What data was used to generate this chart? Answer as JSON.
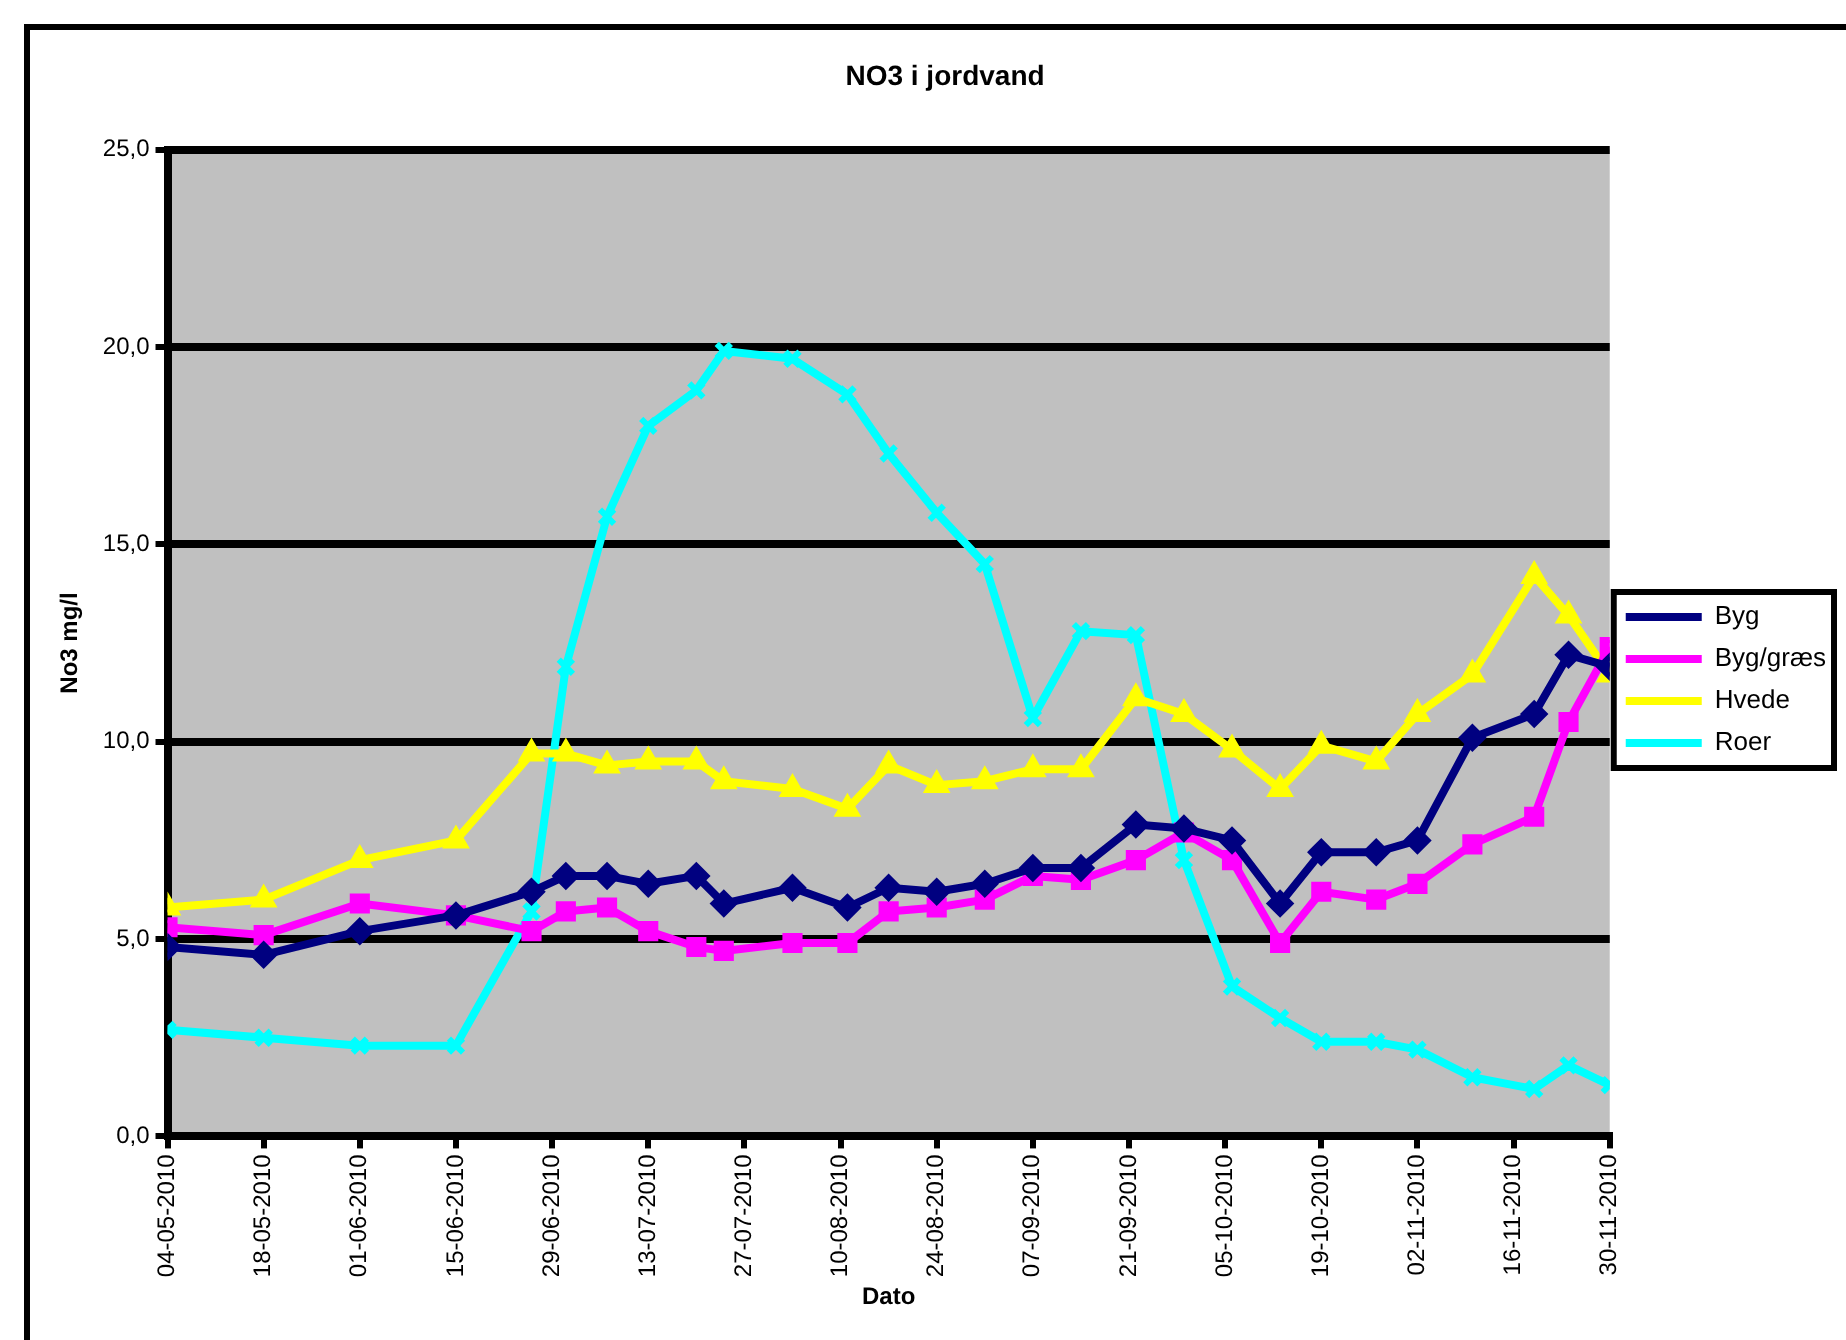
{
  "chart_data": {
    "type": "line",
    "title": "NO3 i jordvand",
    "xlabel": "Dato",
    "ylabel": "No3 mg/l",
    "x": [
      "2010-05-04",
      "2010-05-18",
      "2010-06-01",
      "2010-06-15",
      "2010-06-26",
      "2010-07-01",
      "2010-07-07",
      "2010-07-13",
      "2010-07-20",
      "2010-07-24",
      "2010-08-03",
      "2010-08-11",
      "2010-08-17",
      "2010-08-24",
      "2010-08-31",
      "2010-09-07",
      "2010-09-14",
      "2010-09-22",
      "2010-09-29",
      "2010-10-06",
      "2010-10-13",
      "2010-10-19",
      "2010-10-27",
      "2010-11-02",
      "2010-11-10",
      "2010-11-19",
      "2010-11-24",
      "2010-11-30"
    ],
    "series": [
      {
        "name": "Byg",
        "color": "#000080",
        "marker": "diamond",
        "values": [
          4.8,
          4.6,
          5.2,
          5.6,
          6.2,
          6.6,
          6.6,
          6.4,
          6.6,
          5.9,
          6.3,
          5.8,
          6.3,
          6.2,
          6.4,
          6.8,
          6.8,
          7.9,
          7.8,
          7.5,
          5.9,
          7.2,
          7.2,
          7.5,
          10.1,
          10.7,
          12.2,
          11.9
        ]
      },
      {
        "name": "Byg/græs",
        "color": "#ff00ff",
        "marker": "square",
        "values": [
          5.3,
          5.1,
          5.9,
          5.6,
          5.2,
          5.7,
          5.8,
          5.2,
          4.8,
          4.7,
          4.9,
          4.9,
          5.7,
          5.8,
          6.0,
          6.6,
          6.5,
          7.0,
          7.7,
          7.0,
          4.9,
          6.2,
          6.0,
          6.4,
          7.4,
          8.1,
          10.5,
          12.4
        ]
      },
      {
        "name": "Hvede",
        "color": "#ffff00",
        "marker": "triangle",
        "values": [
          5.8,
          6.0,
          7.0,
          7.5,
          9.7,
          9.7,
          9.4,
          9.5,
          9.5,
          9.0,
          8.8,
          8.3,
          9.4,
          8.9,
          9.0,
          9.3,
          9.3,
          11.1,
          10.7,
          9.8,
          8.8,
          9.9,
          9.5,
          10.7,
          11.7,
          14.2,
          13.2,
          11.7
        ]
      },
      {
        "name": "Roer",
        "color": "#00ffff",
        "marker": "cross",
        "values": [
          2.7,
          2.5,
          2.3,
          2.3,
          5.7,
          11.9,
          15.7,
          18.0,
          18.9,
          19.9,
          19.7,
          18.8,
          17.3,
          15.8,
          14.5,
          10.6,
          12.8,
          12.7,
          7.0,
          3.8,
          3.0,
          2.4,
          2.4,
          2.2,
          1.5,
          1.2,
          1.8,
          1.3
        ]
      }
    ],
    "xlim": [
      "2010-05-04",
      "2010-11-30"
    ],
    "xticks": [
      {
        "value": "2010-05-04",
        "label": "04-05-2010"
      },
      {
        "value": "2010-05-18",
        "label": "18-05-2010"
      },
      {
        "value": "2010-06-01",
        "label": "01-06-2010"
      },
      {
        "value": "2010-06-15",
        "label": "15-06-2010"
      },
      {
        "value": "2010-06-29",
        "label": "29-06-2010"
      },
      {
        "value": "2010-07-13",
        "label": "13-07-2010"
      },
      {
        "value": "2010-07-27",
        "label": "27-07-2010"
      },
      {
        "value": "2010-08-10",
        "label": "10-08-2010"
      },
      {
        "value": "2010-08-24",
        "label": "24-08-2010"
      },
      {
        "value": "2010-09-07",
        "label": "07-09-2010"
      },
      {
        "value": "2010-09-21",
        "label": "21-09-2010"
      },
      {
        "value": "2010-10-05",
        "label": "05-10-2010"
      },
      {
        "value": "2010-10-19",
        "label": "19-10-2010"
      },
      {
        "value": "2010-11-02",
        "label": "02-11-2010"
      },
      {
        "value": "2010-11-16",
        "label": "16-11-2010"
      },
      {
        "value": "2010-11-30",
        "label": "30-11-2010"
      }
    ],
    "ylim": [
      0,
      25
    ],
    "yticks": [
      {
        "value": 0,
        "label": "0,0"
      },
      {
        "value": 5,
        "label": "5,0"
      },
      {
        "value": 10,
        "label": "10,0"
      },
      {
        "value": 15,
        "label": "15,0"
      },
      {
        "value": 20,
        "label": "20,0"
      },
      {
        "value": 25,
        "label": "25,0"
      }
    ],
    "grid": "y",
    "legend": "right",
    "line_style": "solid"
  }
}
